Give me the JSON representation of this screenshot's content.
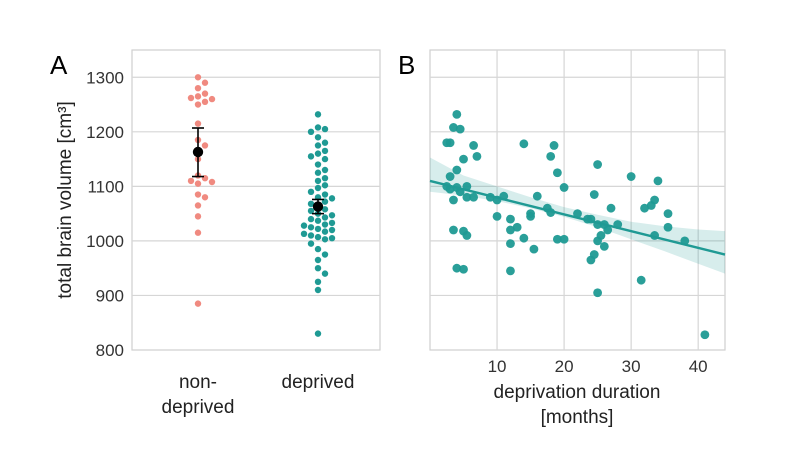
{
  "colors": {
    "nondeprived": "#f08a80",
    "deprived": "#1f9a94",
    "mean_marker": "#000000",
    "band": "#1f9a94"
  },
  "chart_data": [
    {
      "panel_label": "A",
      "type": "scatter",
      "categories": [
        "non-\ndeprived",
        "deprived"
      ],
      "category_lines": [
        [
          "non-",
          "deprived"
        ],
        [
          "deprived"
        ]
      ],
      "ylabel": "total brain volume [cm³]",
      "ylim": [
        800,
        1350
      ],
      "yticks": [
        800,
        900,
        1000,
        1100,
        1200,
        1300
      ],
      "grid": true,
      "series": [
        {
          "category": "non-\ndeprived",
          "values": [
            1300,
            1290,
            1280,
            1270,
            1265,
            1262,
            1260,
            1255,
            1250,
            1215,
            1185,
            1175,
            1150,
            1120,
            1115,
            1110,
            1108,
            1105,
            1085,
            1080,
            1065,
            1045,
            1015,
            885
          ],
          "mean": 1163,
          "ci": [
            1118,
            1207
          ]
        },
        {
          "category": "deprived",
          "values": [
            1232,
            1208,
            1205,
            1200,
            1190,
            1180,
            1175,
            1165,
            1160,
            1155,
            1150,
            1140,
            1130,
            1125,
            1115,
            1110,
            1102,
            1097,
            1090,
            1085,
            1080,
            1078,
            1072,
            1068,
            1063,
            1058,
            1055,
            1050,
            1047,
            1043,
            1040,
            1037,
            1033,
            1030,
            1028,
            1025,
            1022,
            1020,
            1017,
            1013,
            1010,
            1007,
            1005,
            1003,
            995,
            985,
            975,
            965,
            950,
            940,
            925,
            910,
            830
          ],
          "mean": 1063,
          "ci": [
            1050,
            1076
          ]
        }
      ]
    },
    {
      "panel_label": "B",
      "type": "scatter",
      "xlabel": [
        "deprivation duration",
        "[months]"
      ],
      "xlim": [
        0,
        44
      ],
      "xticks": [
        10,
        20,
        30,
        40
      ],
      "ylim": [
        800,
        1350
      ],
      "grid": true,
      "points": [
        [
          4,
          1232
        ],
        [
          3.5,
          1208
        ],
        [
          4.5,
          1205
        ],
        [
          3,
          1180
        ],
        [
          2.5,
          1180
        ],
        [
          5,
          1150
        ],
        [
          4,
          1130
        ],
        [
          3,
          1118
        ],
        [
          6.5,
          1175
        ],
        [
          7,
          1155
        ],
        [
          2.5,
          1100
        ],
        [
          3,
          1095
        ],
        [
          4,
          1098
        ],
        [
          4.5,
          1090
        ],
        [
          5.5,
          1080
        ],
        [
          6.5,
          1080
        ],
        [
          3.5,
          1075
        ],
        [
          5.5,
          1100
        ],
        [
          9,
          1080
        ],
        [
          10,
          1075
        ],
        [
          11,
          1082
        ],
        [
          14,
          1178
        ],
        [
          15,
          1050
        ],
        [
          15,
          1045
        ],
        [
          12,
          1040
        ],
        [
          13,
          1025
        ],
        [
          10,
          1045
        ],
        [
          16,
          1082
        ],
        [
          18,
          1155
        ],
        [
          18.5,
          1175
        ],
        [
          19,
          1125
        ],
        [
          20,
          1098
        ],
        [
          17.5,
          1060
        ],
        [
          18,
          1052
        ],
        [
          19,
          1003
        ],
        [
          20,
          1003
        ],
        [
          12,
          1020
        ],
        [
          12,
          995
        ],
        [
          14,
          1005
        ],
        [
          15.5,
          985
        ],
        [
          22,
          1050
        ],
        [
          24,
          1040
        ],
        [
          24.5,
          1085
        ],
        [
          25,
          1140
        ],
        [
          25,
          1030
        ],
        [
          26,
          1030
        ],
        [
          25.5,
          1010
        ],
        [
          25,
          1000
        ],
        [
          26,
          990
        ],
        [
          26.5,
          1020
        ],
        [
          27,
          1060
        ],
        [
          28,
          1030
        ],
        [
          23.5,
          1040
        ],
        [
          24,
          965
        ],
        [
          24.5,
          975
        ],
        [
          30,
          1118
        ],
        [
          32,
          1060
        ],
        [
          33,
          1065
        ],
        [
          34,
          1110
        ],
        [
          33.5,
          1075
        ],
        [
          33.5,
          1010
        ],
        [
          35.5,
          1050
        ],
        [
          35.5,
          1025
        ],
        [
          38,
          1000
        ],
        [
          31.5,
          928
        ],
        [
          25,
          905
        ],
        [
          12,
          945
        ],
        [
          4,
          950
        ],
        [
          5,
          948
        ],
        [
          3.5,
          1020
        ],
        [
          5,
          1018
        ],
        [
          5.5,
          1010
        ],
        [
          41,
          828
        ]
      ],
      "fit": {
        "x": [
          0,
          44
        ],
        "y": [
          1110,
          975
        ]
      },
      "band": {
        "x": [
          0,
          5,
          10,
          15,
          20,
          25,
          30,
          35,
          40,
          44
        ],
        "lower": [
          1090,
          1083,
          1073,
          1060,
          1044,
          1025,
          1003,
          981,
          958,
          940
        ],
        "upper": [
          1153,
          1120,
          1100,
          1080,
          1062,
          1048,
          1035,
          1027,
          1021,
          1018
        ]
      }
    }
  ]
}
